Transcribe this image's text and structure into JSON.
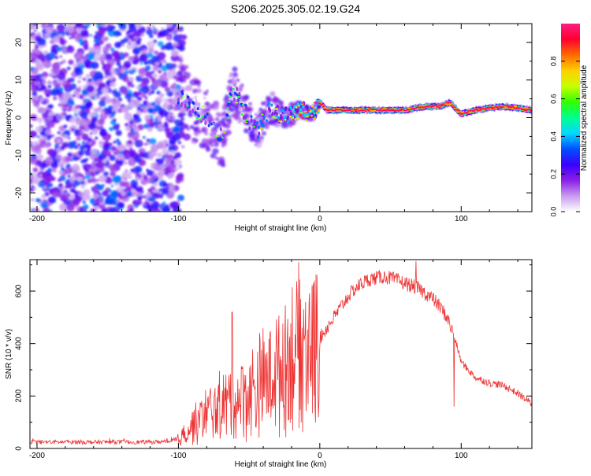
{
  "title": "S206.2025.305.02.19.G24",
  "chart_data": [
    {
      "type": "heatmap",
      "title": "S206.2025.305.02.19.G24",
      "xlabel": "Height of straight line (km)",
      "ylabel": "Frequency (Hz)",
      "xlim": [
        -205,
        150
      ],
      "ylim": [
        -25,
        25
      ],
      "xticks": [
        -200,
        -100,
        0,
        100
      ],
      "yticks": [
        -20,
        -10,
        0,
        10,
        20
      ],
      "colorbar": {
        "label": "Normalized spectral amplitude",
        "range": [
          0,
          1
        ],
        "ticks": [
          0.0,
          0.2,
          0.4,
          0.6,
          0.8
        ],
        "stops": [
          "#ffffff",
          "#c89bf0",
          "#8a1fe6",
          "#3b00ff",
          "#0050ff",
          "#00d8ff",
          "#00ff90",
          "#30ff00",
          "#c8ff00",
          "#ffd000",
          "#ff6a00",
          "#ff0030",
          "#ff1f80"
        ]
      },
      "ridge": [
        {
          "x": -100,
          "y": 6
        },
        {
          "x": -90,
          "y": 3
        },
        {
          "x": -80,
          "y": 0
        },
        {
          "x": -75,
          "y": -3
        },
        {
          "x": -68,
          "y": -6
        },
        {
          "x": -62,
          "y": 8
        },
        {
          "x": -55,
          "y": 3
        },
        {
          "x": -45,
          "y": -4
        },
        {
          "x": -35,
          "y": 3
        },
        {
          "x": -25,
          "y": 0
        },
        {
          "x": -15,
          "y": 2
        },
        {
          "x": -5,
          "y": 1
        },
        {
          "x": 0,
          "y": 4
        },
        {
          "x": 5,
          "y": 2
        },
        {
          "x": 20,
          "y": 2
        },
        {
          "x": 40,
          "y": 2
        },
        {
          "x": 60,
          "y": 2
        },
        {
          "x": 75,
          "y": 3
        },
        {
          "x": 85,
          "y": 3
        },
        {
          "x": 92,
          "y": 4
        },
        {
          "x": 100,
          "y": 1
        },
        {
          "x": 110,
          "y": 2
        },
        {
          "x": 130,
          "y": 3
        },
        {
          "x": 150,
          "y": 2
        }
      ]
    },
    {
      "type": "line",
      "title": "",
      "xlabel": "Height of straight line (km)",
      "ylabel": "SNR (10 * v/v)",
      "xlim": [
        -205,
        150
      ],
      "ylim": [
        0,
        720
      ],
      "xticks": [
        -200,
        -100,
        0,
        100
      ],
      "yticks": [
        0,
        200,
        400,
        600
      ],
      "color": "#ee3333",
      "series": [
        {
          "name": "SNR",
          "x": [
            -205,
            -190,
            -175,
            -160,
            -145,
            -130,
            -115,
            -105,
            -100,
            -95,
            -90,
            -85,
            -80,
            -75,
            -70,
            -65,
            -60,
            -55,
            -50,
            -45,
            -40,
            -35,
            -30,
            -25,
            -20,
            -15,
            -10,
            -5,
            0,
            5,
            10,
            15,
            20,
            25,
            30,
            35,
            40,
            45,
            50,
            55,
            60,
            65,
            70,
            75,
            80,
            85,
            90,
            95,
            100,
            110,
            120,
            130,
            140,
            150
          ],
          "y": [
            25,
            24,
            25,
            24,
            25,
            24,
            25,
            27,
            30,
            60,
            90,
            110,
            130,
            150,
            160,
            180,
            190,
            200,
            210,
            230,
            250,
            280,
            300,
            330,
            360,
            390,
            400,
            410,
            420,
            460,
            500,
            540,
            580,
            610,
            630,
            645,
            650,
            655,
            650,
            640,
            630,
            620,
            610,
            590,
            570,
            540,
            500,
            430,
            330,
            270,
            250,
            240,
            210,
            170
          ]
        }
      ],
      "annotations": [
        {
          "x": -62,
          "y": 520,
          "kind": "spike"
        },
        {
          "x": -15,
          "y": 710,
          "kind": "spike"
        },
        {
          "x": 68,
          "y": 715,
          "kind": "spike"
        },
        {
          "x": 95,
          "y": 160,
          "kind": "dip"
        }
      ]
    }
  ]
}
